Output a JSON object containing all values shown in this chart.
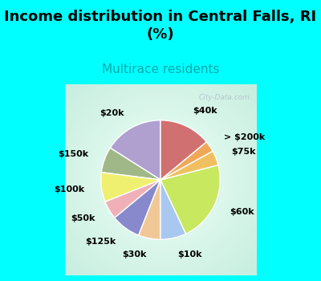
{
  "title": "Income distribution in Central Falls, RI\n(%)",
  "subtitle": "Multirace residents",
  "title_fontsize": 13,
  "subtitle_fontsize": 11,
  "title_color": "#000000",
  "subtitle_color": "#00aaaa",
  "outer_bg_color": "#00FFFF",
  "chart_bg_light": "#eaf8f0",
  "chart_bg_dark": "#b8e8d8",
  "watermark": "City-Data.com",
  "watermark_color": "#b0bfc8",
  "labels": [
    "$20k",
    "$150k",
    "$100k",
    "$50k",
    "$125k",
    "$30k",
    "$10k",
    "$60k",
    "$75k",
    "> $200k",
    "$40k"
  ],
  "sizes": [
    16,
    7,
    8,
    5,
    8,
    6,
    7,
    22,
    4,
    3,
    14
  ],
  "colors": [
    "#b0a0d0",
    "#a0b888",
    "#f0f070",
    "#f0b0b8",
    "#8888cc",
    "#f0c898",
    "#a8c8f0",
    "#c8e860",
    "#f0c060",
    "#f0a858",
    "#d07070"
  ],
  "startangle": 90,
  "label_fontsize": 8,
  "wedge_edge_color": "white",
  "wedge_edge_width": 1.0,
  "labeldistance": 1.28
}
